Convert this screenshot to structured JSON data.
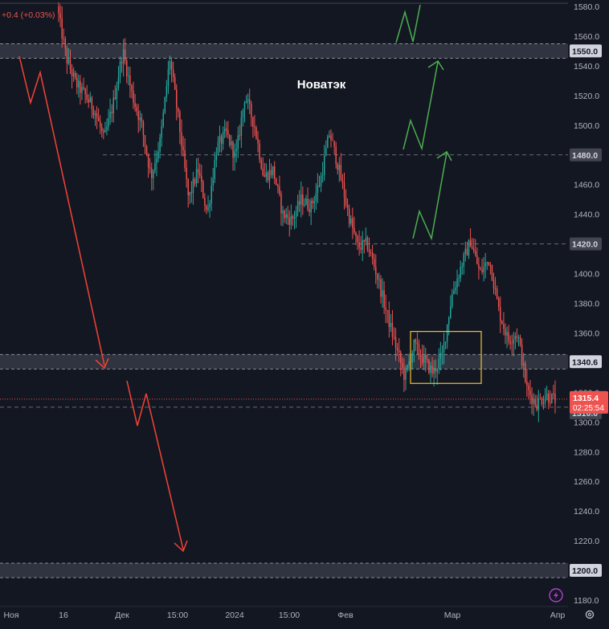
{
  "header": {
    "change_text": "+0.4 (+0.03%)"
  },
  "colors": {
    "background": "#131722",
    "up": "#26a69a",
    "down": "#ef5350",
    "zone": "#363a45",
    "arrow_up": "#4caf50",
    "arrow_down": "#f44336",
    "box": "#f0c030",
    "grid_dash": "#6a6d78",
    "current_price": "#ef5350"
  },
  "chart_data": {
    "type": "candlestick",
    "title": "Новатэк",
    "ylim": [
      1175,
      1585
    ],
    "y_ticks": [
      1580,
      1560,
      1540,
      1520,
      1500,
      1480,
      1460,
      1440,
      1420,
      1400,
      1380,
      1360,
      1320,
      1300,
      1280,
      1260,
      1240,
      1220,
      1180
    ],
    "x_tick_labels": [
      "Ноя",
      "16",
      "Дек",
      "15:00",
      "2024",
      "15:00",
      "Фев",
      "Мар",
      "Апр"
    ],
    "key_levels": [
      {
        "price": "1550.0",
        "type": "zone"
      },
      {
        "price": "1340.6",
        "type": "zone"
      },
      {
        "price": "1200.0",
        "type": "zone"
      }
    ],
    "dashed_levels": [
      {
        "price": "1480.0"
      },
      {
        "price": "1420.0"
      },
      {
        "price": "1310.0"
      }
    ],
    "current_price": {
      "price": "1315.4",
      "countdown": "02:25:54"
    },
    "consolidation_box": {
      "price_low": 1326,
      "price_high": 1361
    },
    "price_path": [
      1580,
      1545,
      1528,
      1520,
      1510,
      1490,
      1515,
      1550,
      1520,
      1500,
      1465,
      1490,
      1545,
      1500,
      1450,
      1470,
      1440,
      1485,
      1495,
      1478,
      1520,
      1500,
      1465,
      1470,
      1440,
      1436,
      1450,
      1445,
      1462,
      1495,
      1470,
      1440,
      1418,
      1420,
      1400,
      1375,
      1352,
      1330,
      1352,
      1342,
      1333,
      1345,
      1385,
      1405,
      1422,
      1400,
      1410,
      1375,
      1355,
      1360,
      1322,
      1312,
      1318,
      1315
    ]
  }
}
